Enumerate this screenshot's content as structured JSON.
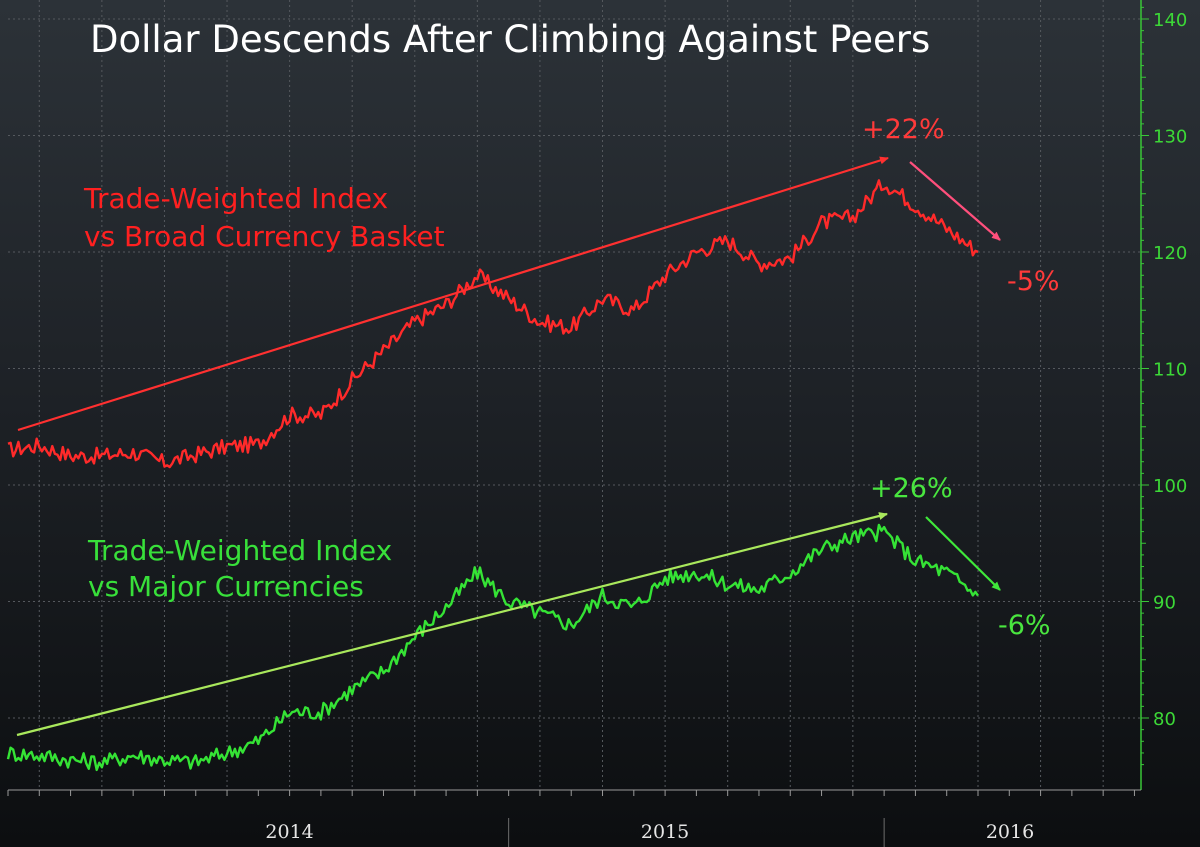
{
  "chart_data": {
    "type": "line",
    "title": "Dollar Descends After Climbing Against Peers",
    "xlabel": "",
    "ylabel": "",
    "x_tick_labels": [
      "2014",
      "2015",
      "2016"
    ],
    "y_ticks": [
      80,
      90,
      100,
      110,
      120,
      130,
      140
    ],
    "ylim": [
      75,
      141
    ],
    "grid": true,
    "series": [
      {
        "name": "Trade-Weighted Index vs Broad Currency Basket",
        "legend_lines": [
          "Trade-Weighted Index",
          "vs Broad Currency Basket"
        ],
        "color": "#ff2a2a",
        "points": [
          [
            "2013-09",
            103.0
          ],
          [
            "2013-10",
            103.4
          ],
          [
            "2013-11",
            102.5
          ],
          [
            "2013-12",
            102.5
          ],
          [
            "2014-01",
            102.8
          ],
          [
            "2014-02",
            101.9
          ],
          [
            "2014-03",
            102.6
          ],
          [
            "2014-04",
            103.3
          ],
          [
            "2014-05",
            103.5
          ],
          [
            "2014-06",
            106.0
          ],
          [
            "2014-07",
            106.0
          ],
          [
            "2014-08",
            109.0
          ],
          [
            "2014-09",
            111.5
          ],
          [
            "2014-10",
            114.0
          ],
          [
            "2014-11",
            115.5
          ],
          [
            "2014-12",
            118.0
          ],
          [
            "2015-01",
            116.0
          ],
          [
            "2015-02",
            114.0
          ],
          [
            "2015-03",
            113.5
          ],
          [
            "2015-04",
            116.0
          ],
          [
            "2015-05",
            115.0
          ],
          [
            "2015-06",
            118.0
          ],
          [
            "2015-07",
            120.0
          ],
          [
            "2015-08",
            121.0
          ],
          [
            "2015-09",
            119.0
          ],
          [
            "2015-10",
            119.5
          ],
          [
            "2015-11",
            122.5
          ],
          [
            "2015-12",
            123.0
          ],
          [
            "2016-01",
            126.0
          ],
          [
            "2016-02",
            124.0
          ],
          [
            "2016-03",
            122.0
          ],
          [
            "2016-04",
            120.0
          ]
        ]
      },
      {
        "name": "Trade-Weighted Index vs Major Currencies",
        "legend_lines": [
          "Trade-Weighted Index",
          "vs Major Currencies"
        ],
        "color": "#35e335",
        "points": [
          [
            "2013-09",
            77.0
          ],
          [
            "2013-10",
            76.8
          ],
          [
            "2013-11",
            76.4
          ],
          [
            "2013-12",
            76.2
          ],
          [
            "2014-01",
            76.8
          ],
          [
            "2014-02",
            76.4
          ],
          [
            "2014-03",
            76.2
          ],
          [
            "2014-04",
            77.0
          ],
          [
            "2014-05",
            78.0
          ],
          [
            "2014-06",
            80.5
          ],
          [
            "2014-07",
            80.5
          ],
          [
            "2014-08",
            82.5
          ],
          [
            "2014-09",
            84.0
          ],
          [
            "2014-10",
            87.0
          ],
          [
            "2014-11",
            89.5
          ],
          [
            "2014-12",
            92.5
          ],
          [
            "2015-01",
            90.0
          ],
          [
            "2015-02",
            89.0
          ],
          [
            "2015-03",
            88.0
          ],
          [
            "2015-04",
            90.5
          ],
          [
            "2015-05",
            89.5
          ],
          [
            "2015-06",
            92.0
          ],
          [
            "2015-07",
            92.5
          ],
          [
            "2015-08",
            91.5
          ],
          [
            "2015-09",
            91.0
          ],
          [
            "2015-10",
            92.5
          ],
          [
            "2015-11",
            94.5
          ],
          [
            "2015-12",
            95.5
          ],
          [
            "2016-01",
            96.0
          ],
          [
            "2016-02",
            93.5
          ],
          [
            "2016-03",
            92.5
          ],
          [
            "2016-04",
            90.5
          ]
        ]
      }
    ],
    "annotations": [
      {
        "text": "+22%",
        "series": "Trade-Weighted Index vs Broad Currency Basket",
        "kind": "rise"
      },
      {
        "text": "-5%",
        "series": "Trade-Weighted Index vs Broad Currency Basket",
        "kind": "fall"
      },
      {
        "text": "+26%",
        "series": "Trade-Weighted Index vs Major Currencies",
        "kind": "rise"
      },
      {
        "text": "-6%",
        "series": "Trade-Weighted Index vs Major Currencies",
        "kind": "fall"
      }
    ]
  }
}
